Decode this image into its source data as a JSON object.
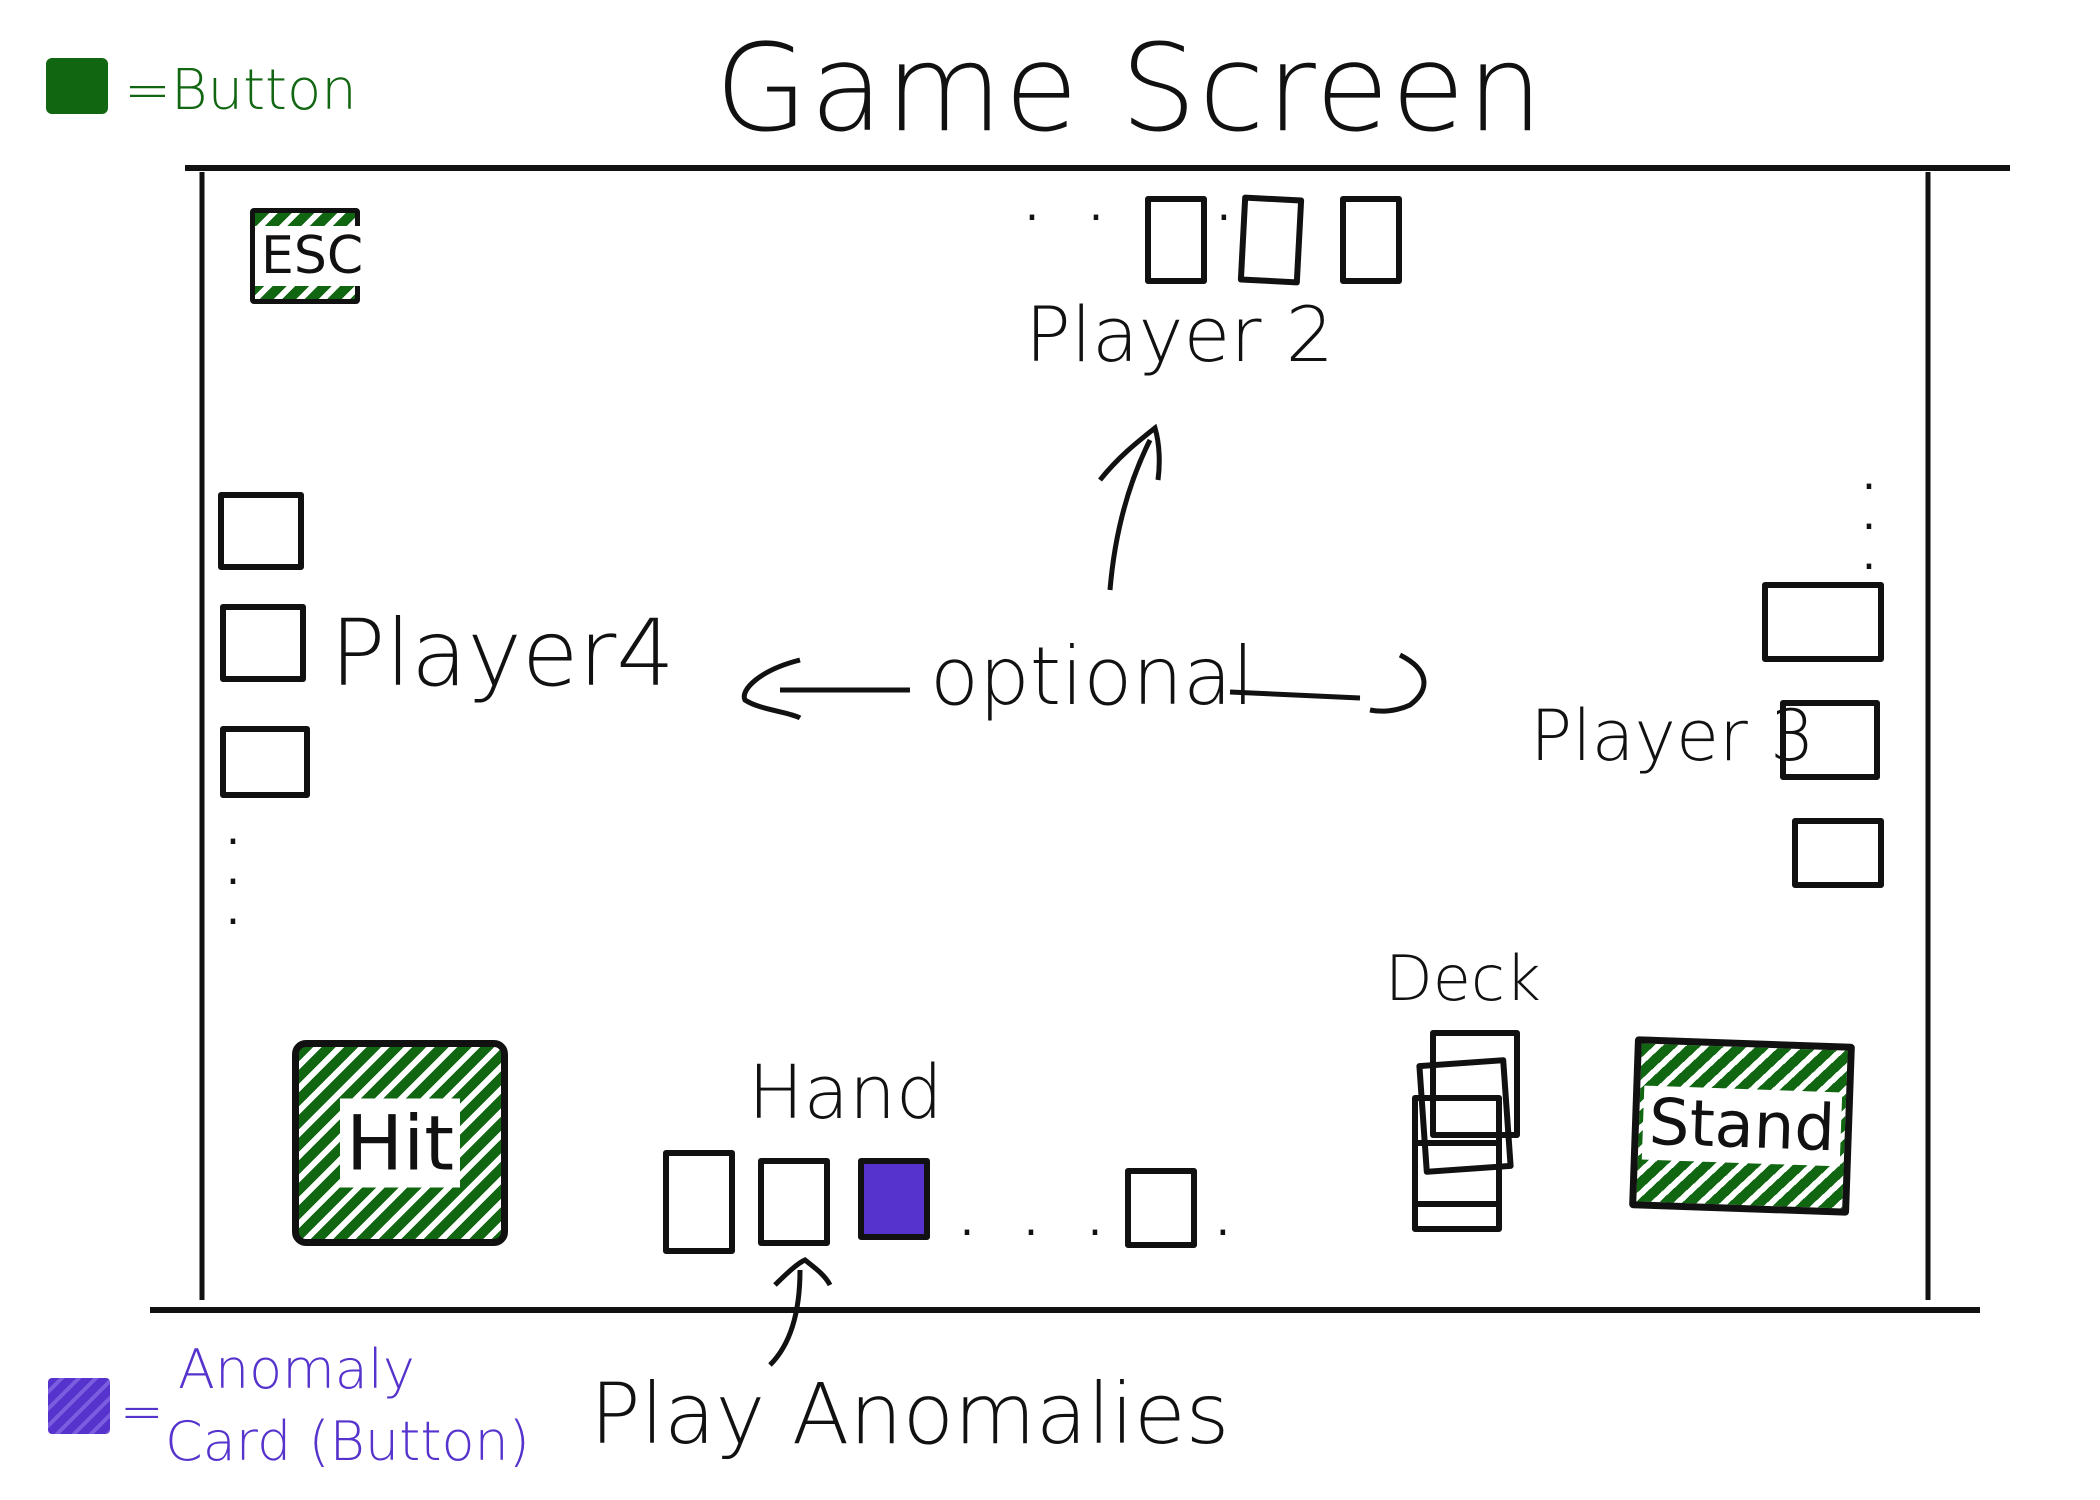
{
  "title": "Game Screen",
  "legend": {
    "button_label": "=Button",
    "anomaly_label_line1": "Anomaly",
    "anomaly_label_line2": "Card (Button)",
    "button_color": "#116611",
    "anomaly_color": "#5533cc"
  },
  "screen": {
    "esc_label": "ESC",
    "player2_label": "Player 2",
    "player3_label": "Player 3",
    "player4_label": "Player4",
    "optional_label": "optional",
    "hand_label": "Hand",
    "deck_label": "Deck",
    "hit_label": "Hit",
    "stand_label": "Stand",
    "play_anomalies_label": "Play Anomalies"
  }
}
